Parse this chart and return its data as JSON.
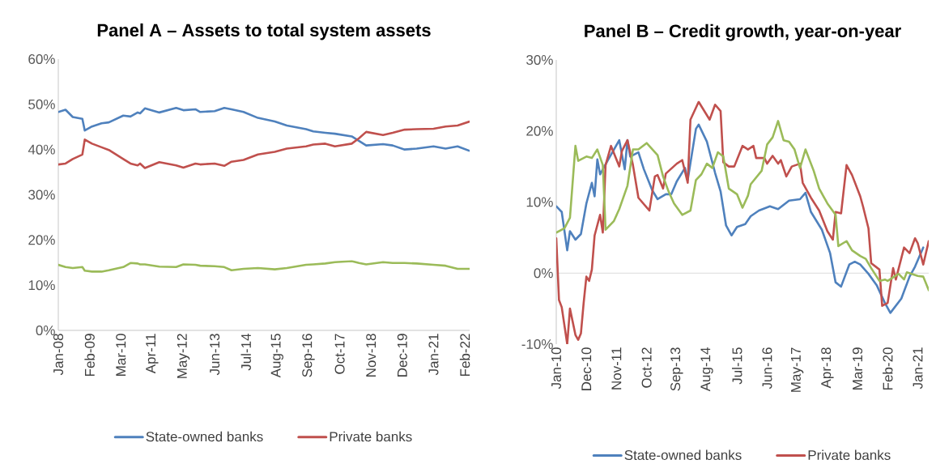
{
  "chart_data": [
    {
      "type": "line",
      "title": "Panel A – Assets to total system assets",
      "legend": "bottom",
      "x": [
        "2008-01",
        "2008-04",
        "2008-07",
        "2008-11",
        "2008-12",
        "2009-03",
        "2009-07",
        "2009-10",
        "2010-04",
        "2010-07",
        "2010-10",
        "2010-11",
        "2011-01",
        "2011-07",
        "2012-02",
        "2012-05",
        "2012-10",
        "2012-12",
        "2013-06",
        "2013-10",
        "2014-01",
        "2014-06",
        "2014-12",
        "2015-07",
        "2015-12",
        "2016-08",
        "2016-11",
        "2017-04",
        "2017-08",
        "2018-03",
        "2018-06",
        "2018-09",
        "2019-04",
        "2019-08",
        "2020-01",
        "2020-06",
        "2021-01",
        "2021-06",
        "2021-11",
        "2022-04"
      ],
      "xlim": [
        "2008-01",
        "2022-04"
      ],
      "xticks": [
        {
          "value": "2008-01",
          "label": "Jan-08"
        },
        {
          "value": "2009-02",
          "label": "Feb-09"
        },
        {
          "value": "2010-03",
          "label": "Mar-10"
        },
        {
          "value": "2011-04",
          "label": "Apr-11"
        },
        {
          "value": "2012-05",
          "label": "May-12"
        },
        {
          "value": "2013-06",
          "label": "Jun-13"
        },
        {
          "value": "2014-07",
          "label": "Jul-14"
        },
        {
          "value": "2015-08",
          "label": "Aug-15"
        },
        {
          "value": "2016-09",
          "label": "Sep-16"
        },
        {
          "value": "2017-10",
          "label": "Oct-17"
        },
        {
          "value": "2018-11",
          "label": "Nov-18"
        },
        {
          "value": "2019-12",
          "label": "Dec-19"
        },
        {
          "value": "2021-01",
          "label": "Jan-21"
        },
        {
          "value": "2022-02",
          "label": "Feb-22"
        }
      ],
      "ylim": [
        0,
        60
      ],
      "yticks": [
        {
          "value": 0,
          "label": "0%"
        },
        {
          "value": 10,
          "label": "10%"
        },
        {
          "value": 20,
          "label": "20%"
        },
        {
          "value": 30,
          "label": "30%"
        },
        {
          "value": 40,
          "label": "40%"
        },
        {
          "value": 50,
          "label": "50%"
        },
        {
          "value": 60,
          "label": "60%"
        }
      ],
      "series": [
        {
          "name": "State-owned banks",
          "color": "#4f81bd",
          "values": [
            48.3,
            48.8,
            47.2,
            46.8,
            44.2,
            45.1,
            45.8,
            46.0,
            47.5,
            47.3,
            48.2,
            48.0,
            49.1,
            48.2,
            49.2,
            48.7,
            48.9,
            48.3,
            48.5,
            49.2,
            48.9,
            48.3,
            47.0,
            46.2,
            45.3,
            44.5,
            44.0,
            43.7,
            43.5,
            42.9,
            41.9,
            40.9,
            41.2,
            40.9,
            40.0,
            40.2,
            40.7,
            40.2,
            40.7,
            39.7
          ]
        },
        {
          "name": "Private banks",
          "color": "#c0504d",
          "values": [
            36.7,
            36.9,
            37.9,
            38.9,
            42.2,
            41.3,
            40.5,
            39.9,
            37.9,
            36.9,
            36.5,
            36.9,
            35.9,
            37.2,
            36.5,
            36.0,
            36.9,
            36.7,
            36.9,
            36.4,
            37.3,
            37.7,
            38.9,
            39.5,
            40.2,
            40.7,
            41.1,
            41.3,
            40.7,
            41.3,
            42.5,
            43.9,
            43.2,
            43.7,
            44.4,
            44.5,
            44.6,
            45.1,
            45.3,
            46.2
          ]
        },
        {
          "color": "#9bbb59",
          "values": [
            14.5,
            14.0,
            13.8,
            14.0,
            13.2,
            13.0,
            13.0,
            13.3,
            14.0,
            14.9,
            14.8,
            14.6,
            14.6,
            14.1,
            14.0,
            14.6,
            14.5,
            14.3,
            14.2,
            14.0,
            13.3,
            13.6,
            13.8,
            13.5,
            13.8,
            14.5,
            14.6,
            14.8,
            15.1,
            15.3,
            14.9,
            14.6,
            15.1,
            14.9,
            14.9,
            14.8,
            14.5,
            14.3,
            13.6,
            13.6
          ]
        }
      ]
    },
    {
      "type": "line",
      "title": "Panel B – Credit growth, year-on-year",
      "legend": "bottom",
      "xlim": [
        "2010-01",
        "2021-05"
      ],
      "xticks": [
        {
          "value": "2010-01",
          "label": "Jan-10"
        },
        {
          "value": "2010-12",
          "label": "Dec-10"
        },
        {
          "value": "2011-11",
          "label": "Nov-11"
        },
        {
          "value": "2012-10",
          "label": "Oct-12"
        },
        {
          "value": "2013-09",
          "label": "Sep-13"
        },
        {
          "value": "2014-08",
          "label": "Aug-14"
        },
        {
          "value": "2015-07",
          "label": "Jul-15"
        },
        {
          "value": "2016-06",
          "label": "Jun-16"
        },
        {
          "value": "2017-05",
          "label": "May-17"
        },
        {
          "value": "2018-04",
          "label": "Apr-18"
        },
        {
          "value": "2019-03",
          "label": "Mar-19"
        },
        {
          "value": "2020-02",
          "label": "Feb-20"
        },
        {
          "value": "2021-01",
          "label": "Jan-21"
        }
      ],
      "ylim": [
        -10,
        30
      ],
      "yticks": [
        {
          "value": -10,
          "label": "-10%"
        },
        {
          "value": 0,
          "label": "0%"
        },
        {
          "value": 10,
          "label": "10%"
        },
        {
          "value": 20,
          "label": "20%"
        },
        {
          "value": 30,
          "label": "30%"
        }
      ],
      "ref_lines": [
        {
          "axis": "y",
          "value": 0,
          "color": "#d9d9d9"
        }
      ],
      "series": [
        {
          "name": "State-owned banks",
          "color": "#4f81bd",
          "x": [
            "2010-01",
            "2010-03",
            "2010-05",
            "2010-06",
            "2010-08",
            "2010-10",
            "2010-12",
            "2011-02",
            "2011-03",
            "2011-04",
            "2011-05",
            "2011-08",
            "2011-12",
            "2012-02",
            "2012-03",
            "2012-04",
            "2012-07",
            "2012-09",
            "2012-12",
            "2013-02",
            "2013-05",
            "2013-07",
            "2013-09",
            "2013-12",
            "2014-01",
            "2014-04",
            "2014-05",
            "2014-08",
            "2014-11",
            "2015-01",
            "2015-03",
            "2015-05",
            "2015-07",
            "2015-10",
            "2015-12",
            "2016-03",
            "2016-07",
            "2016-10",
            "2017-02",
            "2017-06",
            "2017-08",
            "2017-10",
            "2018-02",
            "2018-05",
            "2018-07",
            "2018-09",
            "2018-12",
            "2019-02",
            "2019-04",
            "2019-07",
            "2019-10",
            "2020-01",
            "2020-03",
            "2020-05",
            "2020-07",
            "2020-10",
            "2020-12",
            "2021-03"
          ],
          "values": [
            9.4,
            8.6,
            3.2,
            5.9,
            4.7,
            5.5,
            9.8,
            12.7,
            10.8,
            16.0,
            13.9,
            16.0,
            18.7,
            14.6,
            18.7,
            16.4,
            17.0,
            14.6,
            11.7,
            10.4,
            11.1,
            11.1,
            12.9,
            14.8,
            13.1,
            20.3,
            20.9,
            18.5,
            14.1,
            11.5,
            6.7,
            5.3,
            6.5,
            6.9,
            8.0,
            8.8,
            9.4,
            9.0,
            10.2,
            10.4,
            11.3,
            8.6,
            6.1,
            2.8,
            -1.3,
            -1.9,
            1.2,
            1.6,
            1.2,
            -0.1,
            -1.7,
            -4.2,
            -5.6,
            -4.6,
            -3.6,
            -0.5,
            0.9,
            3.6
          ]
        },
        {
          "name": "Private banks",
          "color": "#c0504d",
          "x": [
            "2010-01",
            "2010-02",
            "2010-03",
            "2010-05",
            "2010-06",
            "2010-08",
            "2010-09",
            "2010-10",
            "2010-11",
            "2010-12",
            "2011-01",
            "2011-02",
            "2011-03",
            "2011-05",
            "2011-06",
            "2011-07",
            "2011-09",
            "2011-12",
            "2012-01",
            "2012-03",
            "2012-05",
            "2012-07",
            "2012-11",
            "2013-01",
            "2013-02",
            "2013-04",
            "2013-05",
            "2013-09",
            "2013-11",
            "2014-01",
            "2014-02",
            "2014-05",
            "2014-09",
            "2014-11",
            "2015-01",
            "2015-02",
            "2015-04",
            "2015-06",
            "2015-09",
            "2015-11",
            "2016-01",
            "2016-02",
            "2016-05",
            "2016-06",
            "2016-08",
            "2016-10",
            "2016-11",
            "2017-01",
            "2017-03",
            "2017-06",
            "2017-07",
            "2017-10",
            "2018-01",
            "2018-04",
            "2018-06",
            "2018-07",
            "2018-09",
            "2018-11",
            "2019-01",
            "2019-04",
            "2019-05",
            "2019-07",
            "2019-08",
            "2019-11",
            "2019-12",
            "2020-02",
            "2020-04",
            "2020-05",
            "2020-08",
            "2020-10",
            "2020-12",
            "2021-01",
            "2021-03",
            "2021-05"
          ],
          "values": [
            4.9,
            -3.8,
            -4.8,
            -10.0,
            -5.0,
            -8.7,
            -9.4,
            -8.5,
            -4.2,
            -0.5,
            -1.1,
            0.5,
            5.3,
            8.2,
            5.7,
            15.2,
            17.9,
            15.0,
            17.2,
            18.7,
            15.2,
            10.6,
            8.8,
            13.6,
            13.8,
            11.9,
            14.0,
            15.4,
            15.9,
            12.7,
            21.6,
            24.1,
            21.6,
            23.7,
            22.8,
            15.6,
            15.0,
            15.0,
            17.9,
            17.4,
            17.9,
            16.2,
            16.2,
            15.4,
            16.5,
            15.4,
            15.9,
            13.6,
            15.0,
            15.4,
            12.7,
            10.6,
            8.8,
            5.9,
            4.7,
            8.6,
            8.4,
            15.2,
            13.8,
            10.8,
            9.4,
            6.3,
            1.4,
            0.5,
            -4.6,
            -4.2,
            0.7,
            -0.9,
            3.6,
            2.8,
            4.9,
            4.2,
            1.2,
            4.5
          ]
        },
        {
          "color": "#9bbb59",
          "x": [
            "2010-01",
            "2010-04",
            "2010-06",
            "2010-08",
            "2010-09",
            "2010-12",
            "2011-02",
            "2011-04",
            "2011-06",
            "2011-07",
            "2011-10",
            "2011-12",
            "2012-03",
            "2012-05",
            "2012-07",
            "2012-10",
            "2013-02",
            "2013-04",
            "2013-06",
            "2013-08",
            "2013-11",
            "2014-02",
            "2014-04",
            "2014-06",
            "2014-08",
            "2014-10",
            "2014-12",
            "2015-02",
            "2015-04",
            "2015-07",
            "2015-09",
            "2015-11",
            "2015-12",
            "2016-04",
            "2016-06",
            "2016-08",
            "2016-10",
            "2016-12",
            "2017-02",
            "2017-04",
            "2017-06",
            "2017-08",
            "2017-11",
            "2018-01",
            "2018-04",
            "2018-07",
            "2018-08",
            "2018-11",
            "2019-01",
            "2019-04",
            "2019-06",
            "2019-08",
            "2019-11",
            "2020-01",
            "2020-02",
            "2020-06",
            "2020-08",
            "2020-09",
            "2021-01",
            "2021-03",
            "2021-05"
          ],
          "values": [
            5.7,
            6.3,
            7.8,
            17.9,
            15.8,
            16.4,
            16.2,
            17.4,
            15.2,
            6.1,
            7.3,
            9.0,
            12.3,
            17.4,
            17.4,
            18.3,
            16.6,
            13.6,
            11.5,
            9.8,
            8.2,
            8.8,
            13.1,
            13.9,
            15.4,
            14.8,
            17.0,
            16.4,
            11.9,
            11.1,
            9.2,
            10.9,
            12.5,
            14.4,
            18.1,
            19.1,
            21.4,
            18.7,
            18.5,
            17.4,
            14.8,
            17.4,
            14.4,
            11.9,
            9.8,
            8.2,
            3.8,
            4.5,
            3.2,
            2.4,
            2.0,
            0.7,
            -1.1,
            -0.9,
            -1.1,
            -0.1,
            -0.9,
            0.1,
            -0.4,
            -0.5,
            -2.4
          ]
        }
      ]
    }
  ]
}
